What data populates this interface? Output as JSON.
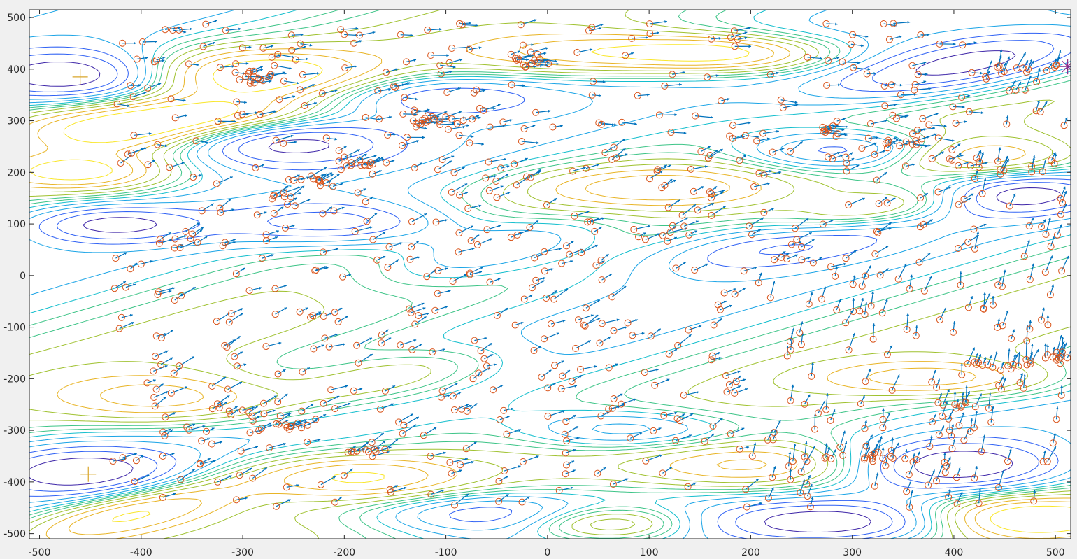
{
  "chart_data": {
    "type": "scatter",
    "title": "",
    "xlabel": "",
    "ylabel": "",
    "xlim": [
      -510,
      515
    ],
    "ylim": [
      -510,
      515
    ],
    "x_ticks": [
      -500,
      -400,
      -300,
      -200,
      -100,
      0,
      100,
      200,
      300,
      400,
      500
    ],
    "y_ticks": [
      -500,
      -400,
      -300,
      -200,
      -100,
      0,
      100,
      200,
      300,
      400,
      500
    ],
    "grid": false,
    "legend": "none",
    "colors": {
      "markers": "#d95319",
      "arrows": "#0072bd",
      "contour_colormap": [
        "#3e26a8",
        "#2f61f4",
        "#1aa4e6",
        "#13becd",
        "#3dc487",
        "#9fc12f",
        "#e8b426",
        "#f9e629"
      ],
      "axes_background": "#ffffff",
      "figure_background": "#f0f0f0"
    },
    "extrema_markers": [
      {
        "x": -460,
        "y": 385,
        "symbol": "+",
        "color": "#d9a62a"
      },
      {
        "x": -452,
        "y": -385,
        "symbol": "+",
        "color": "#d9a62a"
      },
      {
        "x": 512,
        "y": 405,
        "symbol": "*",
        "color": "#8a2a8a"
      }
    ],
    "contour_field": {
      "description": "Gaussian bumps (amplitude, center x, center y, sigma x, sigma y, rotation deg)",
      "bumps": [
        {
          "a": -1.0,
          "x": -460,
          "y": 385,
          "sx": 70,
          "sy": 35,
          "r": 0
        },
        {
          "a": 0.9,
          "x": -290,
          "y": 390,
          "sx": 85,
          "sy": 35,
          "r": 0
        },
        {
          "a": 0.8,
          "x": -420,
          "y": 280,
          "sx": 70,
          "sy": 30,
          "r": 0
        },
        {
          "a": -0.9,
          "x": -270,
          "y": 260,
          "sx": 80,
          "sy": 35,
          "r": 0
        },
        {
          "a": 0.7,
          "x": 50,
          "y": 430,
          "sx": 90,
          "sy": 30,
          "r": 0
        },
        {
          "a": 0.9,
          "x": 180,
          "y": 430,
          "sx": 70,
          "sy": 25,
          "r": 0
        },
        {
          "a": -1.0,
          "x": 310,
          "y": 240,
          "sx": 80,
          "sy": 30,
          "r": 0
        },
        {
          "a": -1.0,
          "x": 420,
          "y": 410,
          "sx": 110,
          "sy": 35,
          "r": 20
        },
        {
          "a": 0.9,
          "x": 410,
          "y": 230,
          "sx": 80,
          "sy": 30,
          "r": 0
        },
        {
          "a": -0.8,
          "x": 460,
          "y": 160,
          "sx": 60,
          "sy": 30,
          "r": 0
        },
        {
          "a": 0.8,
          "x": -460,
          "y": 200,
          "sx": 60,
          "sy": 25,
          "r": 0
        },
        {
          "a": -0.7,
          "x": -430,
          "y": 100,
          "sx": 60,
          "sy": 25,
          "r": 0
        },
        {
          "a": 0.7,
          "x": -370,
          "y": -240,
          "sx": 80,
          "sy": 35,
          "r": 0
        },
        {
          "a": -0.8,
          "x": -460,
          "y": -380,
          "sx": 70,
          "sy": 35,
          "r": 0
        },
        {
          "a": 0.9,
          "x": -410,
          "y": -460,
          "sx": 90,
          "sy": 30,
          "r": 25
        },
        {
          "a": 0.7,
          "x": -190,
          "y": -390,
          "sx": 70,
          "sy": 30,
          "r": 0
        },
        {
          "a": -0.7,
          "x": -60,
          "y": -460,
          "sx": 90,
          "sy": 30,
          "r": 0
        },
        {
          "a": 0.8,
          "x": 60,
          "y": -480,
          "sx": 60,
          "sy": 25,
          "r": 0
        },
        {
          "a": -0.9,
          "x": 290,
          "y": -480,
          "sx": 90,
          "sy": 30,
          "r": 0
        },
        {
          "a": 0.8,
          "x": 220,
          "y": -370,
          "sx": 90,
          "sy": 35,
          "r": 0
        },
        {
          "a": -0.9,
          "x": 400,
          "y": -370,
          "sx": 80,
          "sy": 35,
          "r": 0
        },
        {
          "a": 1.0,
          "x": 470,
          "y": -470,
          "sx": 70,
          "sy": 30,
          "r": 0
        },
        {
          "a": -0.6,
          "x": -200,
          "y": 100,
          "sx": 80,
          "sy": 30,
          "r": 0
        },
        {
          "a": 0.6,
          "x": 100,
          "y": 170,
          "sx": 90,
          "sy": 30,
          "r": 0
        },
        {
          "a": -0.6,
          "x": 80,
          "y": -300,
          "sx": 80,
          "sy": 30,
          "r": 0
        },
        {
          "a": 0.6,
          "x": 390,
          "y": -200,
          "sx": 80,
          "sy": 25,
          "r": 0
        },
        {
          "a": -0.6,
          "x": -120,
          "y": 350,
          "sx": 80,
          "sy": 30,
          "r": 0
        },
        {
          "a": 0.5,
          "x": -160,
          "y": -200,
          "sx": 80,
          "sy": 30,
          "r": 20
        },
        {
          "a": 0.7,
          "x": -330,
          "y": 310,
          "sx": 70,
          "sy": 25,
          "r": 0
        },
        {
          "a": -0.5,
          "x": 230,
          "y": 60,
          "sx": 90,
          "sy": 30,
          "r": 15
        },
        {
          "a": 0.5,
          "x": 330,
          "y": 130,
          "sx": 80,
          "sy": 25,
          "r": 20
        },
        {
          "a": -0.5,
          "x": -50,
          "y": 50,
          "sx": 100,
          "sy": 35,
          "r": 25
        }
      ],
      "ridge": {
        "a": 0.4,
        "x": 0,
        "y": -20,
        "s": 60,
        "angle": 30
      },
      "levels": [
        -0.8,
        -0.6,
        -0.45,
        -0.3,
        -0.18,
        -0.08,
        0.0,
        0.08,
        0.18,
        0.3,
        0.45,
        0.6,
        0.8
      ]
    },
    "clusters": [
      {
        "x": -290,
        "y": 385,
        "n": 14,
        "sx": 10,
        "sy": 8
      },
      {
        "x": -125,
        "y": 300,
        "n": 16,
        "sx": 12,
        "sy": 7
      },
      {
        "x": -190,
        "y": 220,
        "n": 12,
        "sx": 12,
        "sy": 6
      },
      {
        "x": -230,
        "y": 185,
        "n": 9,
        "sx": 15,
        "sy": 5
      },
      {
        "x": -260,
        "y": 150,
        "n": 8,
        "sx": 10,
        "sy": 6
      },
      {
        "x": -355,
        "y": 65,
        "n": 10,
        "sx": 20,
        "sy": 7
      },
      {
        "x": -20,
        "y": 420,
        "n": 14,
        "sx": 14,
        "sy": 10
      },
      {
        "x": 465,
        "y": 398,
        "n": 14,
        "sx": 30,
        "sy": 8
      },
      {
        "x": 420,
        "y": 215,
        "n": 14,
        "sx": 35,
        "sy": 8
      },
      {
        "x": 355,
        "y": 255,
        "n": 10,
        "sx": 12,
        "sy": 6
      },
      {
        "x": 280,
        "y": 285,
        "n": 8,
        "sx": 8,
        "sy": 6
      },
      {
        "x": 440,
        "y": -175,
        "n": 12,
        "sx": 25,
        "sy": 5
      },
      {
        "x": 495,
        "y": -160,
        "n": 12,
        "sx": 18,
        "sy": 6
      },
      {
        "x": 410,
        "y": -255,
        "n": 9,
        "sx": 18,
        "sy": 5
      },
      {
        "x": 315,
        "y": -355,
        "n": 16,
        "sx": 30,
        "sy": 6
      },
      {
        "x": -260,
        "y": -295,
        "n": 9,
        "sx": 12,
        "sy": 6
      },
      {
        "x": -300,
        "y": -265,
        "n": 10,
        "sx": 15,
        "sy": 8
      },
      {
        "x": -185,
        "y": -338,
        "n": 7,
        "sx": 10,
        "sy": 3
      }
    ],
    "scatter_field": {
      "n": 720,
      "xmin": -430,
      "xmax": 510,
      "ymin": -450,
      "ymax": 490,
      "seed": 17
    },
    "arrow_direction_deg": 25
  }
}
